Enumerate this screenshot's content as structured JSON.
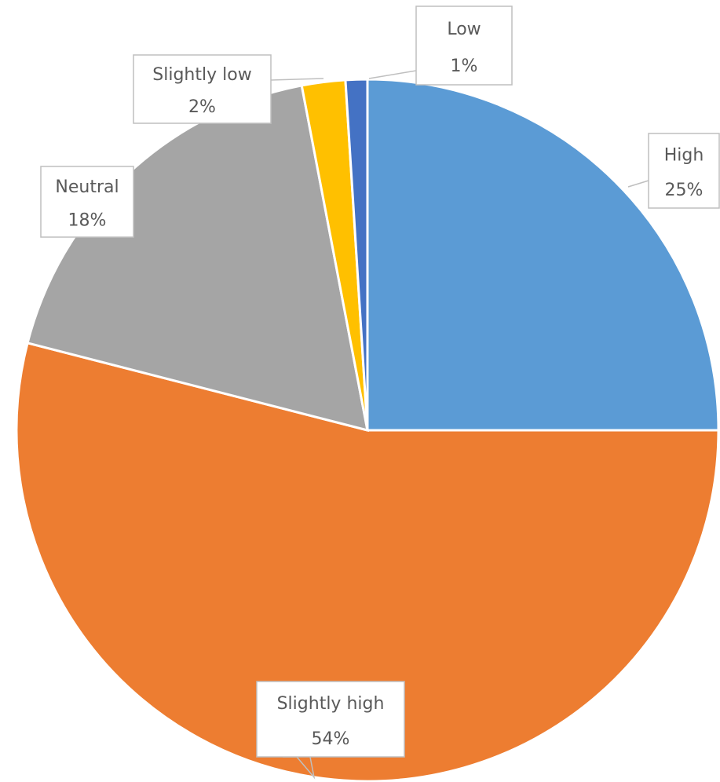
{
  "chart_data": {
    "type": "pie",
    "categories": [
      "High",
      "Slightly high",
      "Neutral",
      "Slightly low",
      "Low"
    ],
    "values": [
      25,
      54,
      18,
      2,
      1
    ],
    "value_labels": [
      "25%",
      "54%",
      "18%",
      "2%",
      "1%"
    ],
    "colors": [
      "#5b9bd5",
      "#ed7d31",
      "#a5a5a5",
      "#ffc000",
      "#4472c4"
    ]
  }
}
